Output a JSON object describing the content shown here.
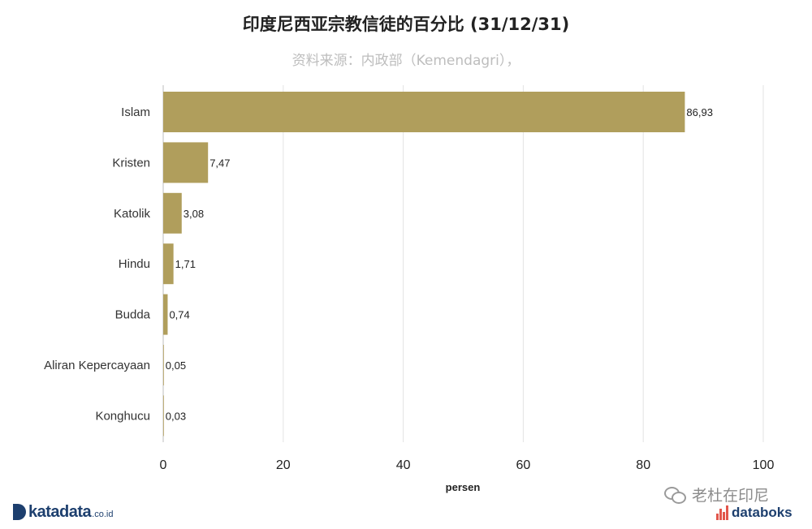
{
  "chart_data": {
    "type": "bar",
    "orientation": "horizontal",
    "title": "印度尼西亚宗教信徒的百分比 (31/12/31)",
    "subtitle": "资料来源：内政部（Kemendagri），",
    "categories": [
      "Islam",
      "Kristen",
      "Katolik",
      "Hindu",
      "Budda",
      "Aliran Kepercayaan",
      "Konghucu"
    ],
    "values": [
      86.93,
      7.47,
      3.08,
      1.71,
      0.74,
      0.05,
      0.03
    ],
    "value_labels": [
      "86,93",
      "7,47",
      "3,08",
      "1,71",
      "0,74",
      "0,05",
      "0,03"
    ],
    "xlabel": "persen",
    "ylabel": "",
    "xlim": [
      0,
      100
    ],
    "xticks": [
      0,
      20,
      40,
      60,
      80,
      100
    ],
    "grid": true,
    "legend": "none",
    "bar_color": "#b09e5c"
  },
  "branding": {
    "left_logo_name": "katadata",
    "left_logo_suffix": ".co.id",
    "wechat_account": "老杜在印尼",
    "right_logo_name": "databoks"
  }
}
